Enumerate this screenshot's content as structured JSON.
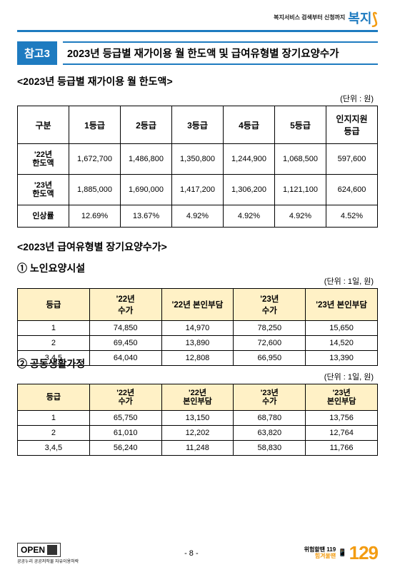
{
  "header": {
    "top_text": "복지서비스\n검색부터 신청까지",
    "logo_text": "복지",
    "logo_suffix": "로"
  },
  "ref": {
    "badge": "참고3",
    "title": "2023년 등급별 재가이용 월 한도액 및 급여유형별 장기요양수가"
  },
  "section1": {
    "subtitle": "<2023년 등급별 재가이용 월 한도액>",
    "unit": "(단위 : 원)",
    "headers": [
      "구분",
      "1등급",
      "2등급",
      "3등급",
      "4등급",
      "5등급",
      "인지지원\n등급"
    ],
    "rows": [
      {
        "label": "'22년\n한도액",
        "cells": [
          "1,672,700",
          "1,486,800",
          "1,350,800",
          "1,244,900",
          "1,068,500",
          "597,600"
        ]
      },
      {
        "label": "'23년\n한도액",
        "cells": [
          "1,885,000",
          "1,690,000",
          "1,417,200",
          "1,306,200",
          "1,121,100",
          "624,600"
        ]
      },
      {
        "label": "인상률",
        "cells": [
          "12.69%",
          "13.67%",
          "4.92%",
          "4.92%",
          "4.92%",
          "4.52%"
        ]
      }
    ]
  },
  "section2_title": "<2023년 급여유형별 장기요양수가>",
  "table2": {
    "heading": "① 노인요양시설",
    "unit": "(단위 : 1일, 원)",
    "headers": [
      "등급",
      "'22년\n수가",
      "'22년 본인부담",
      "'23년\n수가",
      "'23년 본인부담"
    ],
    "rows": [
      [
        "1",
        "74,850",
        "14,970",
        "78,250",
        "15,650"
      ],
      [
        "2",
        "69,450",
        "13,890",
        "72,600",
        "14,520"
      ],
      [
        "3,4,5",
        "64,040",
        "12,808",
        "66,950",
        "13,390"
      ]
    ]
  },
  "table3": {
    "heading": "② 공동생활가정",
    "unit": "(단위 : 1일, 원)",
    "headers": [
      "등급",
      "'22년\n수가",
      "'22년\n본인부담",
      "'23년\n수가",
      "'23년\n본인부담"
    ],
    "rows": [
      [
        "1",
        "65,750",
        "13,150",
        "68,780",
        "13,756"
      ],
      [
        "2",
        "61,010",
        "12,202",
        "63,820",
        "12,764"
      ],
      [
        "3,4,5",
        "56,240",
        "11,248",
        "58,830",
        "11,766"
      ]
    ]
  },
  "footer": {
    "open": "OPEN",
    "open_sub": "공공누리 공공저작물 자유이용허락",
    "page": "- 8 -",
    "call_label_top": "위험할땐 119",
    "call_label_bot": "힘겨울땐",
    "call_num": "129"
  },
  "style": {
    "accent": "#1e7bc0",
    "table2_header_bg": "#fff1c6",
    "orange": "#f39c12"
  }
}
